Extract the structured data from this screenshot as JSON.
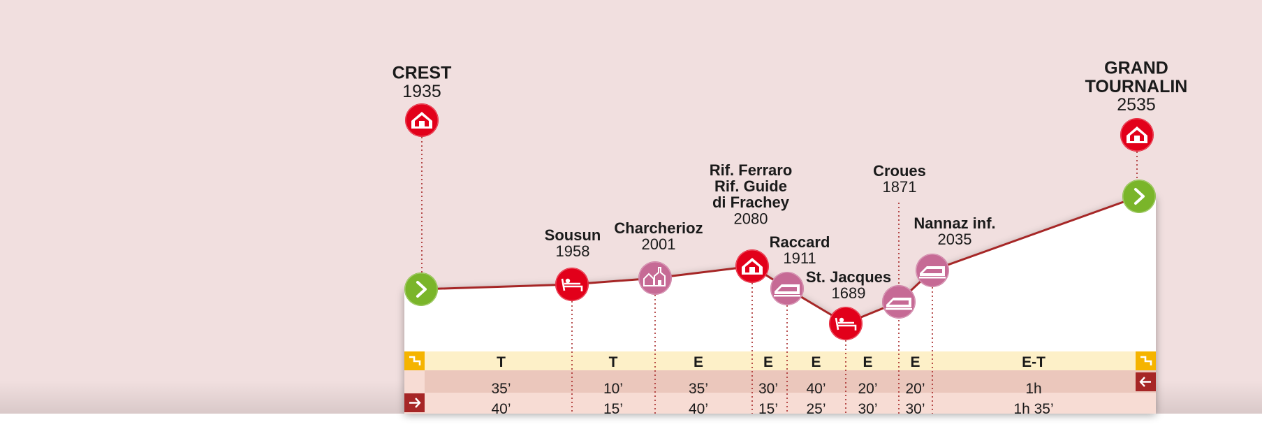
{
  "colors": {
    "background": "#f1dfdf",
    "profile_fill": "#ffffff",
    "profile_line": "#a62626",
    "start_end": "#7ab52a",
    "red_marker": "#e2001a",
    "pink_marker": "#c66a95",
    "difficulty_row": "#fdf0c8",
    "time_row_1": "#ebc7bc",
    "time_row_2": "#f7dcd4",
    "yellow_icon": "#f5b400",
    "dark_red_icon": "#a62626"
  },
  "peaks": [
    {
      "id": "crest",
      "name_lines": [
        "CREST"
      ],
      "altitude": "1935",
      "icon": "hut-icon"
    },
    {
      "id": "grand-tournalin",
      "name_lines": [
        "GRAND",
        "TOURNALIN"
      ],
      "altitude": "2535",
      "icon": "hut-icon"
    }
  ],
  "waypoints": [
    {
      "id": "start",
      "icon": "chevron-right-icon",
      "type": "start"
    },
    {
      "id": "sousun",
      "name_lines": [
        "Sousun"
      ],
      "altitude": "1958",
      "icon": "bed-icon",
      "type": "red"
    },
    {
      "id": "charcherioz",
      "name_lines": [
        "Charcherioz"
      ],
      "altitude": "2001",
      "icon": "village-icon",
      "type": "pink"
    },
    {
      "id": "rif-ferraro",
      "name_lines": [
        "Rif. Ferraro",
        "Rif. Guide",
        "di Frachey"
      ],
      "altitude": "2080",
      "icon": "hut-icon",
      "type": "red"
    },
    {
      "id": "raccard",
      "name_lines": [
        "Raccard"
      ],
      "altitude": "1911",
      "icon": "farm-icon",
      "type": "pink"
    },
    {
      "id": "st-jacques",
      "name_lines": [
        "St. Jacques"
      ],
      "altitude": "1689",
      "icon": "bed-icon",
      "type": "red"
    },
    {
      "id": "croues",
      "name_lines": [
        "Croues"
      ],
      "altitude": "1871",
      "icon": "farm-icon",
      "type": "pink"
    },
    {
      "id": "nannaz-inf",
      "name_lines": [
        "Nannaz inf."
      ],
      "altitude": "2035",
      "icon": "farm-icon",
      "type": "pink"
    },
    {
      "id": "end",
      "icon": "chevron-right-icon",
      "type": "end"
    }
  ],
  "segments": [
    {
      "difficulty": "T",
      "time_forward": "35’",
      "time_backward": "40’"
    },
    {
      "difficulty": "T",
      "time_forward": "10’",
      "time_backward": "15’"
    },
    {
      "difficulty": "E",
      "time_forward": "35’",
      "time_backward": "40’"
    },
    {
      "difficulty": "E",
      "time_forward": "30’",
      "time_backward": "15’"
    },
    {
      "difficulty": "E",
      "time_forward": "40’",
      "time_backward": "25’"
    },
    {
      "difficulty": "E",
      "time_forward": "20’",
      "time_backward": "30’"
    },
    {
      "difficulty": "E",
      "time_forward": "20’",
      "time_backward": "30’"
    },
    {
      "difficulty": "E-T",
      "time_forward": "1h",
      "time_backward": "1h 35’"
    }
  ],
  "row_icons": {
    "difficulty_left": "difficulty-icon",
    "difficulty_right": "difficulty-icon",
    "time_right": "arrow-left-icon",
    "time_left": "arrow-right-icon"
  }
}
